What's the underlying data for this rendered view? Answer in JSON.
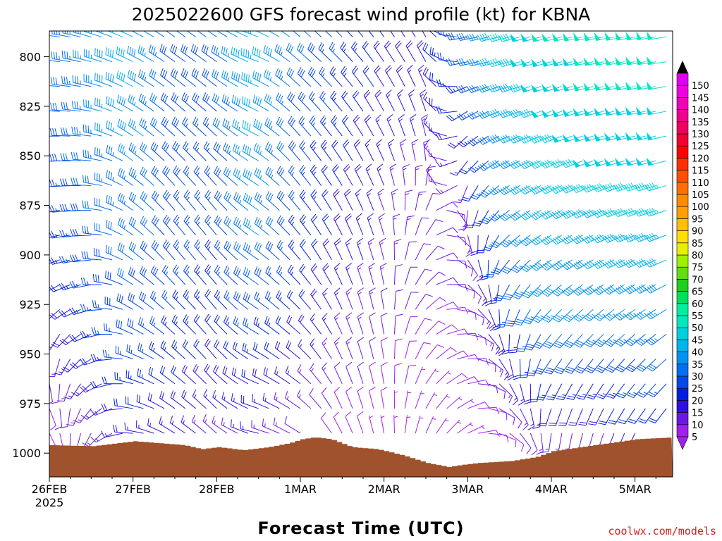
{
  "chart_data": {
    "type": "wind-barb-profile",
    "title": "2025022600 GFS forecast wind profile (kt) for KBNA",
    "xlabel": "Forecast Time (UTC)",
    "ylabel": "",
    "y_axis": {
      "ticks": [
        800,
        825,
        850,
        875,
        900,
        925,
        950,
        975,
        1000
      ],
      "range": [
        1012,
        787
      ],
      "inverted": true
    },
    "x_axis": {
      "ticks": [
        "26FEB",
        "27FEB",
        "28FEB",
        "1MAR",
        "2MAR",
        "3MAR",
        "4MAR",
        "5MAR"
      ],
      "first_tick_sublabel": "2025",
      "range_days": [
        0,
        7.45
      ]
    },
    "levels": [
      1000,
      975,
      950,
      925,
      900,
      875,
      850,
      825,
      800
    ],
    "wind_profile": [
      {
        "day": 0.0,
        "dir": [
          150,
          160,
          185,
          225,
          250,
          260,
          265,
          270,
          275
        ],
        "spd": [
          8,
          10,
          12,
          16,
          20,
          22,
          25,
          28,
          30
        ]
      },
      {
        "day": 0.5,
        "dir": [
          200,
          220,
          240,
          255,
          265,
          270,
          275,
          280,
          285
        ],
        "spd": [
          10,
          14,
          20,
          24,
          28,
          30,
          32,
          34,
          36
        ]
      },
      {
        "day": 1.0,
        "dir": [
          270,
          280,
          290,
          300,
          305,
          305,
          305,
          300,
          295
        ],
        "spd": [
          15,
          22,
          28,
          30,
          32,
          34,
          36,
          40,
          42
        ]
      },
      {
        "day": 1.5,
        "dir": [
          300,
          305,
          310,
          315,
          320,
          320,
          315,
          310,
          305
        ],
        "spd": [
          14,
          20,
          24,
          26,
          28,
          28,
          28,
          28,
          30
        ]
      },
      {
        "day": 2.0,
        "dir": [
          310,
          315,
          320,
          320,
          320,
          320,
          315,
          310,
          305
        ],
        "spd": [
          12,
          16,
          20,
          22,
          25,
          26,
          26,
          28,
          30
        ]
      },
      {
        "day": 2.5,
        "dir": [
          280,
          290,
          300,
          305,
          305,
          305,
          300,
          295,
          290
        ],
        "spd": [
          14,
          18,
          24,
          30,
          34,
          38,
          40,
          42,
          44
        ]
      },
      {
        "day": 3.0,
        "dir": [
          300,
          305,
          310,
          315,
          320,
          320,
          320,
          315,
          310
        ],
        "spd": [
          10,
          14,
          18,
          22,
          24,
          26,
          28,
          30,
          32
        ]
      },
      {
        "day": 3.5,
        "dir": [
          330,
          335,
          335,
          335,
          335,
          330,
          325,
          320,
          315
        ],
        "spd": [
          8,
          10,
          14,
          16,
          18,
          20,
          22,
          24,
          26
        ]
      },
      {
        "day": 4.0,
        "dir": [
          350,
          350,
          350,
          350,
          345,
          340,
          335,
          330,
          325
        ],
        "spd": [
          6,
          8,
          10,
          12,
          14,
          15,
          16,
          18,
          20
        ]
      },
      {
        "day": 4.5,
        "dir": [
          20,
          30,
          40,
          50,
          40,
          20,
          350,
          340,
          330
        ],
        "spd": [
          5,
          6,
          8,
          10,
          10,
          12,
          14,
          16,
          18
        ]
      },
      {
        "day": 5.0,
        "dir": [
          60,
          70,
          90,
          120,
          150,
          190,
          220,
          240,
          260
        ],
        "spd": [
          6,
          8,
          10,
          10,
          12,
          14,
          16,
          22,
          28
        ]
      },
      {
        "day": 5.5,
        "dir": [
          120,
          140,
          170,
          200,
          220,
          235,
          245,
          250,
          255
        ],
        "spd": [
          8,
          12,
          20,
          26,
          30,
          34,
          38,
          42,
          46
        ]
      },
      {
        "day": 6.0,
        "dir": [
          180,
          200,
          215,
          225,
          235,
          240,
          245,
          250,
          255
        ],
        "spd": [
          10,
          20,
          30,
          36,
          40,
          44,
          46,
          48,
          50
        ]
      },
      {
        "day": 6.5,
        "dir": [
          190,
          205,
          220,
          230,
          240,
          245,
          250,
          255,
          258
        ],
        "spd": [
          10,
          20,
          30,
          36,
          40,
          45,
          48,
          50,
          50
        ]
      },
      {
        "day": 7.0,
        "dir": [
          200,
          215,
          225,
          235,
          245,
          250,
          255,
          258,
          260
        ],
        "spd": [
          12,
          22,
          30,
          38,
          42,
          46,
          48,
          50,
          52
        ]
      },
      {
        "day": 7.45,
        "dir": [
          205,
          220,
          230,
          240,
          248,
          252,
          256,
          260,
          262
        ],
        "spd": [
          12,
          22,
          32,
          38,
          42,
          46,
          48,
          50,
          52
        ]
      }
    ],
    "surface_pressure": [
      {
        "day": 0.0,
        "p": 996
      },
      {
        "day": 0.5,
        "p": 996.5
      },
      {
        "day": 0.8,
        "p": 995
      },
      {
        "day": 1.0,
        "p": 994
      },
      {
        "day": 1.3,
        "p": 995
      },
      {
        "day": 1.6,
        "p": 996
      },
      {
        "day": 1.8,
        "p": 998
      },
      {
        "day": 2.0,
        "p": 997
      },
      {
        "day": 2.3,
        "p": 998.5
      },
      {
        "day": 2.6,
        "p": 997
      },
      {
        "day": 2.85,
        "p": 995
      },
      {
        "day": 3.0,
        "p": 993
      },
      {
        "day": 3.15,
        "p": 992
      },
      {
        "day": 3.35,
        "p": 993
      },
      {
        "day": 3.6,
        "p": 997
      },
      {
        "day": 3.9,
        "p": 998
      },
      {
        "day": 4.2,
        "p": 1001
      },
      {
        "day": 4.5,
        "p": 1005
      },
      {
        "day": 4.75,
        "p": 1007
      },
      {
        "day": 4.9,
        "p": 1006
      },
      {
        "day": 5.1,
        "p": 1005
      },
      {
        "day": 5.5,
        "p": 1004
      },
      {
        "day": 5.8,
        "p": 1002
      },
      {
        "day": 6.0,
        "p": 999
      },
      {
        "day": 6.5,
        "p": 996
      },
      {
        "day": 7.0,
        "p": 993
      },
      {
        "day": 7.45,
        "p": 992
      }
    ],
    "colorbar": {
      "labels": [
        5,
        10,
        15,
        20,
        25,
        30,
        35,
        40,
        45,
        50,
        55,
        60,
        65,
        70,
        75,
        80,
        85,
        90,
        95,
        100,
        105,
        110,
        115,
        120,
        125,
        130,
        135,
        140,
        145,
        150
      ],
      "colors": [
        "#a020f0",
        "#6a18e8",
        "#3010e0",
        "#0020e0",
        "#0048e8",
        "#0070f0",
        "#0094f0",
        "#00b4f0",
        "#00d0e0",
        "#00e8c0",
        "#00f0a0",
        "#00e060",
        "#20d020",
        "#60e010",
        "#a0f000",
        "#e8f000",
        "#ffe000",
        "#ffc000",
        "#ffa000",
        "#ff8c00",
        "#ff7000",
        "#ff5000",
        "#ff3000",
        "#ff0000",
        "#f00030",
        "#f00060",
        "#f00090",
        "#f000b8",
        "#f000e0",
        "#e000f0"
      ],
      "units": "kt"
    },
    "colors": {
      "terrain": "#a0522d",
      "grid": "#000000"
    }
  },
  "credit": "coolwx.com/models"
}
